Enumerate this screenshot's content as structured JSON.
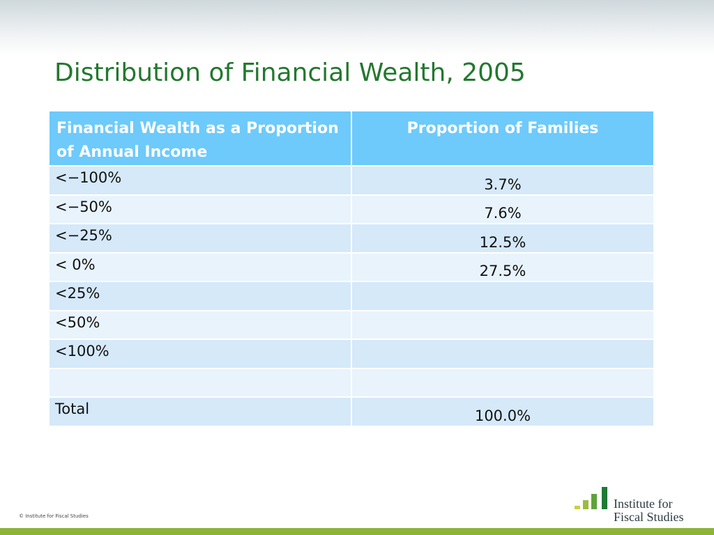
{
  "title": "Distribution of Financial Wealth, 2005",
  "table": {
    "header": [
      "Financial Wealth as a Proportion of Annual Income",
      "Proportion of Families"
    ],
    "rows": [
      [
        "<−100%",
        "3.7%"
      ],
      [
        "<−50%",
        "7.6%"
      ],
      [
        "<−25%",
        "12.5%"
      ],
      [
        "< 0%",
        "27.5%"
      ],
      [
        "<25%",
        null
      ],
      [
        "<50%",
        null
      ],
      [
        "<100%",
        null
      ],
      [
        null,
        null
      ],
      [
        "Total",
        "100.0%"
      ]
    ]
  },
  "footer": {
    "copyright": "© Institute for Fiscal Studies"
  },
  "logo": {
    "lines": [
      "Institute for",
      "Fiscal Studies"
    ]
  }
}
